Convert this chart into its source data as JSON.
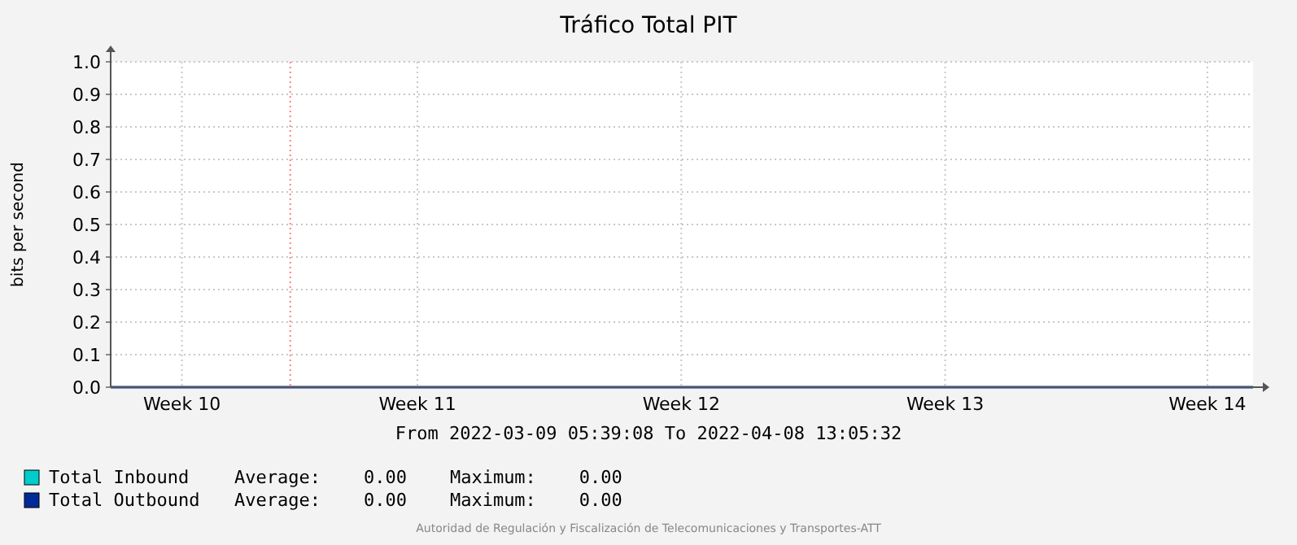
{
  "chart_data": {
    "type": "line",
    "title": "Tráfico Total PIT",
    "ylabel": "bits per second",
    "xlim": [
      "2022-03-09T05:39",
      "2022-04-08T13:05"
    ],
    "xticks": [
      {
        "value": "2022-03-11T03:00",
        "label": "Week 10"
      },
      {
        "value": "2022-03-17T09:00",
        "label": "Week 11"
      },
      {
        "value": "2022-03-24T09:00",
        "label": "Week 12"
      },
      {
        "value": "2022-03-31T09:00",
        "label": "Week 13"
      },
      {
        "value": "2022-04-07T08:00",
        "label": "Week 14"
      }
    ],
    "ylim": [
      0,
      1
    ],
    "yticks": [
      {
        "value": 0,
        "label": "0.0"
      },
      {
        "value": 0.1,
        "label": "0.1"
      },
      {
        "value": 0.2,
        "label": "0.2"
      },
      {
        "value": 0.3,
        "label": "0.3"
      },
      {
        "value": 0.4,
        "label": "0.4"
      },
      {
        "value": 0.5,
        "label": "0.5"
      },
      {
        "value": 0.6,
        "label": "0.6"
      },
      {
        "value": 0.7,
        "label": "0.7"
      },
      {
        "value": 0.8,
        "label": "0.8"
      },
      {
        "value": 0.9,
        "label": "0.9"
      },
      {
        "value": 1,
        "label": "1.0"
      }
    ],
    "grid": true,
    "legend": "bottom left",
    "line_style": "solid",
    "ref_lines": [
      {
        "axis": "x",
        "value": "2022-03-14T00:00",
        "color": "#ff8080",
        "line_style": "dotted"
      }
    ],
    "series": [
      {
        "name": "Total Inbound",
        "color": "#00cccc",
        "values": [
          null,
          null
        ]
      },
      {
        "name": "Total Outbound",
        "color": "#002a97",
        "x": [
          "2022-03-09T05:39",
          "2022-04-08T13:05"
        ],
        "values": [
          0,
          0
        ]
      }
    ],
    "annotations": [
      "From 2022-03-09 05:39:08 To 2022-04-08 13:05:32",
      "Average:    0.00    Maximum:    0.00",
      "Average:    0.00    Maximum:    0.00",
      "Autoridad de Regulación y Fiscalización de Telecomunicaciones y Transportes-ATT"
    ]
  }
}
